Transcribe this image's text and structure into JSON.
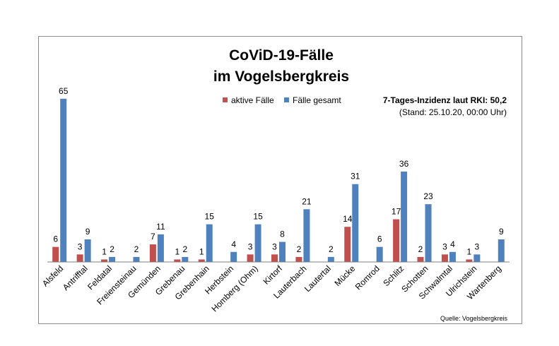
{
  "chart_data": {
    "type": "bar",
    "title_line1": "CoViD-19-Fälle",
    "title_line2": "im Vogelsbergkreis",
    "categories": [
      "Alsfeld",
      "Antrifftal",
      "Feldatal",
      "Freiensteinau",
      "Gemünden",
      "Grebenau",
      "Grebenhain",
      "Herbstein",
      "Homberg (Ohm)",
      "Kirtorf",
      "Lauterbach",
      "Lautertal",
      "Mücke",
      "Romrod",
      "Schlitz",
      "Schotten",
      "Schwalmtal",
      "Ulrichstein",
      "Wartenberg"
    ],
    "series": [
      {
        "name": "aktive Fälle",
        "color": "#c0504d",
        "values": [
          6,
          3,
          1,
          null,
          7,
          1,
          1,
          null,
          3,
          3,
          2,
          null,
          14,
          null,
          17,
          2,
          3,
          1,
          null
        ]
      },
      {
        "name": "Fälle gesamt",
        "color": "#4f81bd",
        "values": [
          65,
          9,
          2,
          2,
          11,
          2,
          15,
          4,
          15,
          8,
          21,
          2,
          31,
          6,
          36,
          23,
          4,
          3,
          9
        ]
      }
    ],
    "ylim": [
      0,
      70
    ],
    "grid": false,
    "legend_position": "top"
  },
  "note": {
    "incidence": "7-Tages-Inzidenz laut RKI: 50,2",
    "stand": "(Stand: 25.10.20, 00:00 Uhr)"
  },
  "source": "Quelle: Vogelsbergkreis"
}
